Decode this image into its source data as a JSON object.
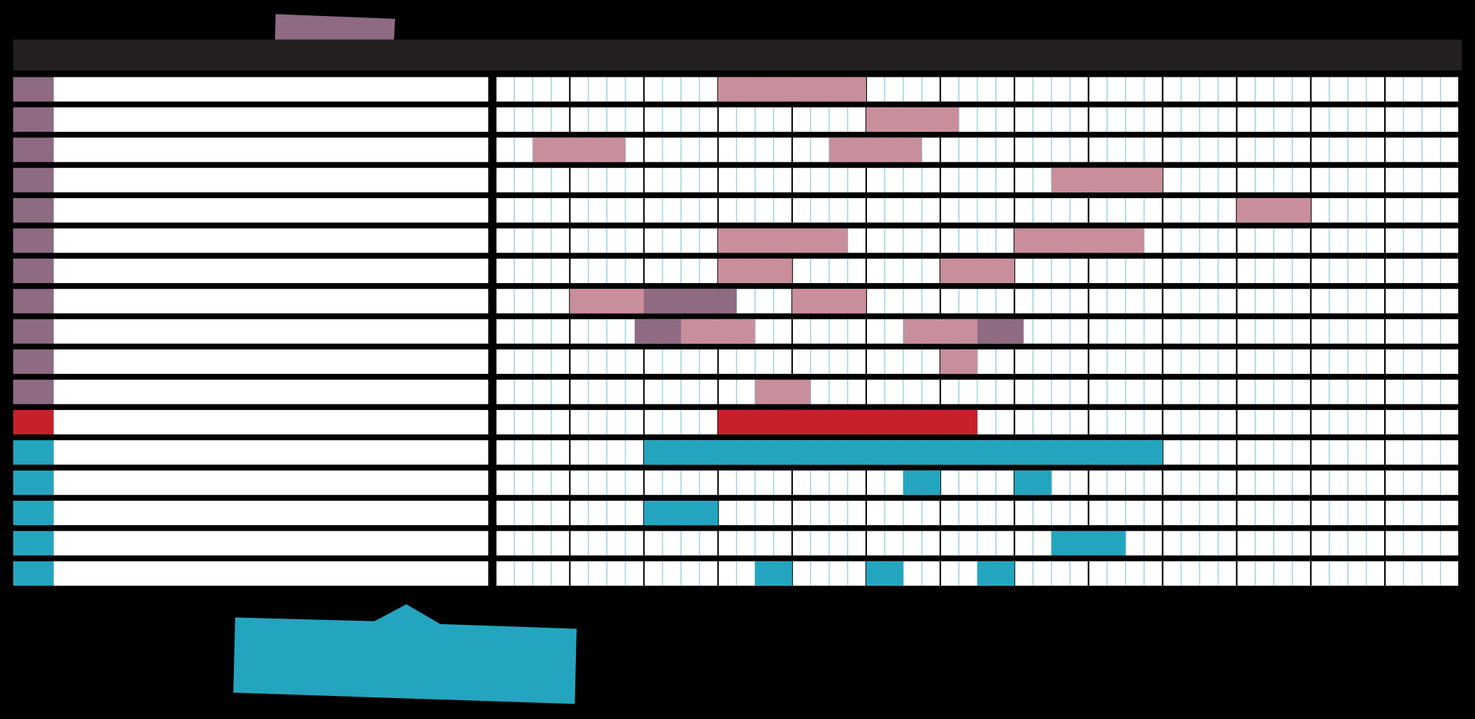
{
  "grid": {
    "months": 13,
    "weeks_per_month": 4
  },
  "rows": [
    {
      "color": "#8f6a83",
      "bars": [
        {
          "start": 12,
          "end": 20,
          "color": "#c98e9b"
        }
      ]
    },
    {
      "color": "#8f6a83",
      "bars": [
        {
          "start": 20,
          "end": 25,
          "color": "#c98e9b"
        }
      ]
    },
    {
      "color": "#8f6a83",
      "bars": [
        {
          "start": 2,
          "end": 7,
          "color": "#c98e9b"
        },
        {
          "start": 18,
          "end": 23,
          "color": "#c98e9b"
        }
      ]
    },
    {
      "color": "#8f6a83",
      "bars": [
        {
          "start": 30,
          "end": 36,
          "color": "#c98e9b"
        }
      ]
    },
    {
      "color": "#8f6a83",
      "bars": [
        {
          "start": 40,
          "end": 44,
          "color": "#c98e9b"
        }
      ]
    },
    {
      "color": "#8f6a83",
      "bars": [
        {
          "start": 12,
          "end": 19,
          "color": "#c98e9b"
        },
        {
          "start": 28,
          "end": 35,
          "color": "#c98e9b"
        }
      ]
    },
    {
      "color": "#8f6a83",
      "bars": [
        {
          "start": 12,
          "end": 16,
          "color": "#c98e9b"
        },
        {
          "start": 24,
          "end": 28,
          "color": "#c98e9b"
        }
      ]
    },
    {
      "color": "#8f6a83",
      "bars": [
        {
          "start": 4,
          "end": 8,
          "color": "#c98e9b"
        },
        {
          "start": 8,
          "end": 13,
          "color": "#8f6a83"
        },
        {
          "start": 16,
          "end": 20,
          "color": "#c98e9b"
        }
      ]
    },
    {
      "color": "#8f6a83",
      "bars": [
        {
          "start": 7.5,
          "end": 10,
          "color": "#8f6a83"
        },
        {
          "start": 10,
          "end": 14,
          "color": "#c98e9b"
        },
        {
          "start": 22,
          "end": 26,
          "color": "#c98e9b"
        },
        {
          "start": 26,
          "end": 28.5,
          "color": "#8f6a83"
        }
      ]
    },
    {
      "color": "#8f6a83",
      "bars": [
        {
          "start": 24,
          "end": 26,
          "color": "#c98e9b"
        }
      ]
    },
    {
      "color": "#8f6a83",
      "bars": [
        {
          "start": 14,
          "end": 17,
          "color": "#c98e9b"
        }
      ]
    },
    {
      "color": "#c8202b",
      "bars": [
        {
          "start": 12,
          "end": 26,
          "color": "#c8202b"
        }
      ]
    },
    {
      "color": "#24a5bf",
      "bars": [
        {
          "start": 8,
          "end": 36,
          "color": "#24a5bf"
        }
      ]
    },
    {
      "color": "#24a5bf",
      "bars": [
        {
          "start": 22,
          "end": 24,
          "color": "#24a5bf"
        },
        {
          "start": 28,
          "end": 30,
          "color": "#24a5bf"
        }
      ]
    },
    {
      "color": "#24a5bf",
      "bars": [
        {
          "start": 8,
          "end": 12,
          "color": "#24a5bf"
        }
      ]
    },
    {
      "color": "#24a5bf",
      "bars": [
        {
          "start": 30,
          "end": 34,
          "color": "#24a5bf"
        }
      ]
    },
    {
      "color": "#24a5bf",
      "bars": [
        {
          "start": 14,
          "end": 16,
          "color": "#24a5bf"
        },
        {
          "start": 20,
          "end": 22,
          "color": "#24a5bf"
        },
        {
          "start": 26,
          "end": 28,
          "color": "#24a5bf"
        }
      ]
    }
  ]
}
